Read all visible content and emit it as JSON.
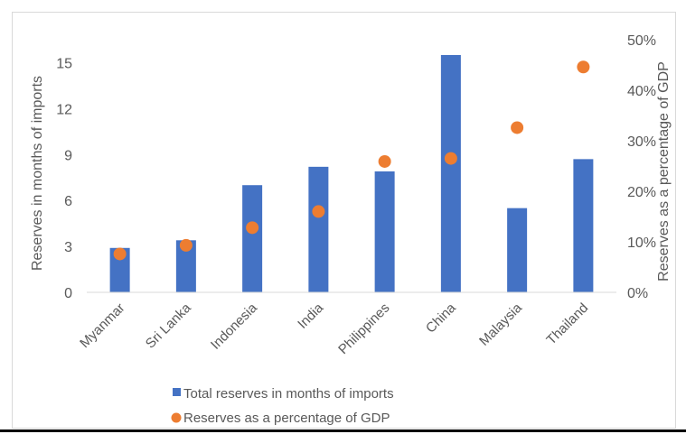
{
  "chart_data": {
    "type": "bar",
    "categories": [
      "Myanmar",
      "Sri Lanka",
      "Indonesia",
      "India",
      "Philippines",
      "China",
      "Malaysia",
      "Thailand"
    ],
    "series": [
      {
        "name": "Total reserves in months of imports",
        "type": "bar",
        "axis": "left",
        "color": "#4472c4",
        "values": [
          2.9,
          3.4,
          7.0,
          8.2,
          7.9,
          15.5,
          5.5,
          8.7
        ]
      },
      {
        "name": "Reserves as a percentage of GDP",
        "type": "scatter",
        "axis": "right",
        "color": "#ed7d31",
        "values": [
          7.6,
          9.3,
          12.8,
          16.0,
          25.9,
          26.5,
          32.6,
          44.6
        ]
      }
    ],
    "y_left": {
      "label": "Reserves in months of imports",
      "lim": [
        0,
        16.5
      ],
      "ticks": [
        0,
        3,
        6,
        9,
        12,
        15
      ],
      "tick_labels": [
        "0",
        "3",
        "6",
        "9",
        "12",
        "15"
      ]
    },
    "y_right": {
      "label": "Reserves as a percentage of GDP",
      "lim": [
        0,
        50
      ],
      "ticks": [
        0,
        10,
        20,
        30,
        40,
        50
      ],
      "tick_labels": [
        "0%",
        "10%",
        "20%",
        "30%",
        "40%",
        "50%"
      ]
    },
    "grid": false,
    "legend_position": "bottom"
  }
}
